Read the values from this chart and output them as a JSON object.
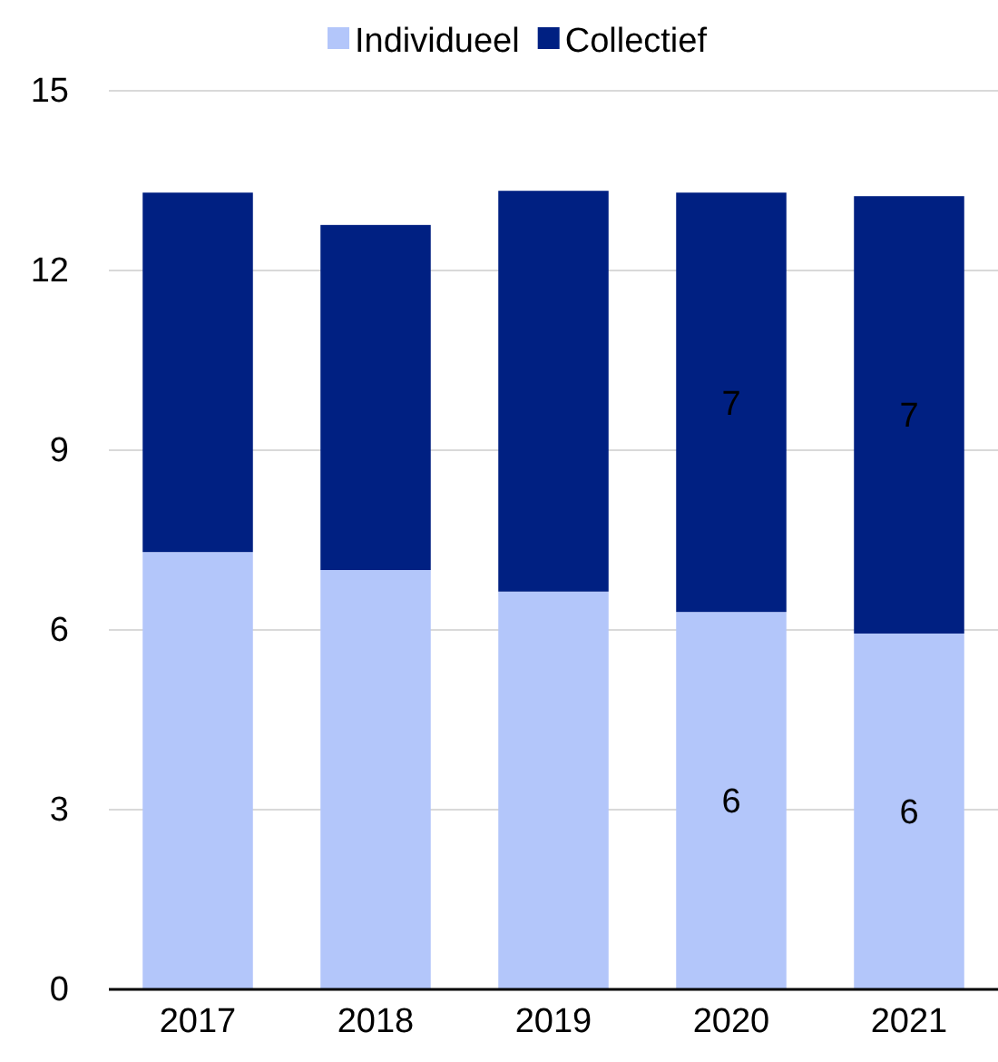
{
  "chart_data": {
    "type": "bar",
    "stacked": true,
    "categories": [
      "2017",
      "2018",
      "2019",
      "2020",
      "2021"
    ],
    "series": [
      {
        "name": "Individueel",
        "color": "#b3c6fa",
        "values": [
          7.3,
          7.0,
          6.64,
          6.3,
          5.94
        ],
        "value_labels": [
          null,
          null,
          null,
          "6",
          "6"
        ]
      },
      {
        "name": "Collectief",
        "color": "#002082",
        "values": [
          6.0,
          5.76,
          6.69,
          7.0,
          7.3
        ],
        "value_labels": [
          null,
          null,
          null,
          "7",
          "7"
        ]
      }
    ],
    "ylim": [
      0,
      15
    ],
    "yticks": [
      0,
      3,
      6,
      9,
      12,
      15
    ],
    "grid": "y",
    "legend": "top"
  }
}
